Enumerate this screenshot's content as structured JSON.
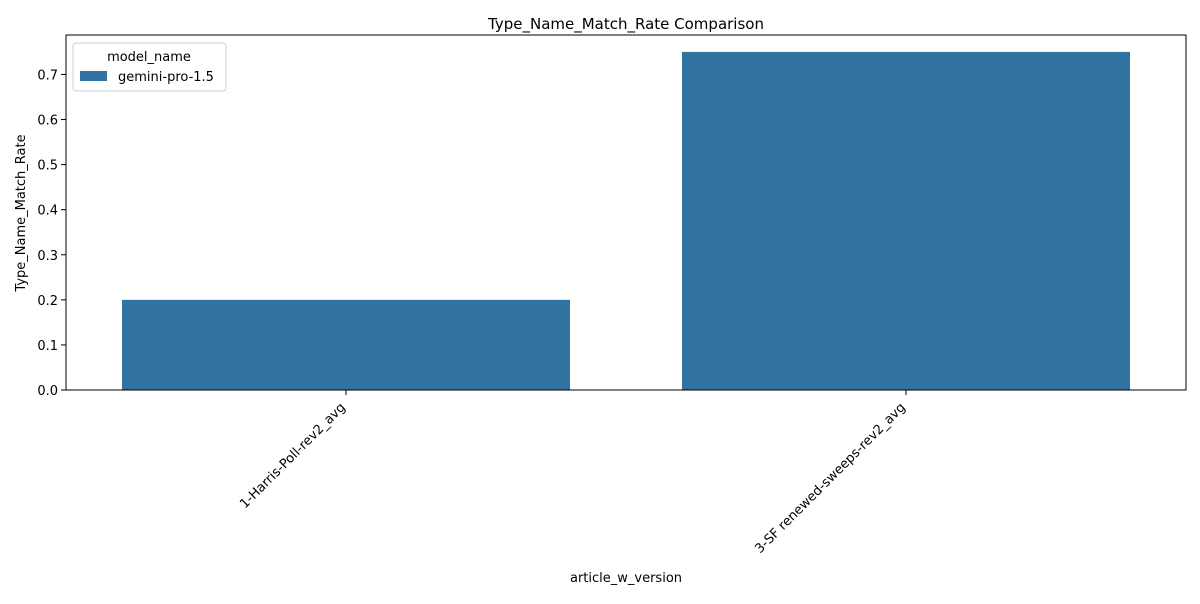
{
  "chart_data": {
    "type": "bar",
    "title": "Type_Name_Match_Rate Comparison",
    "xlabel": "article_w_version",
    "ylabel": "Type_Name_Match_Rate",
    "categories": [
      "1-Harris-Poll-rev2_avg",
      "3-SF renewed-sweeps-rev2_avg"
    ],
    "series": [
      {
        "name": "gemini-pro-1.5",
        "values": [
          0.2,
          0.75
        ],
        "color": "#3274a1"
      }
    ],
    "ylim": [
      0,
      0.7875
    ],
    "yticks": [
      0.0,
      0.1,
      0.2,
      0.3,
      0.4,
      0.5,
      0.6,
      0.7
    ],
    "ytick_labels": [
      "0.0",
      "0.1",
      "0.2",
      "0.3",
      "0.4",
      "0.5",
      "0.6",
      "0.7"
    ],
    "grid": false,
    "legend": {
      "title": "model_name",
      "position": "top-left",
      "entries": [
        "gemini-pro-1.5"
      ]
    }
  }
}
